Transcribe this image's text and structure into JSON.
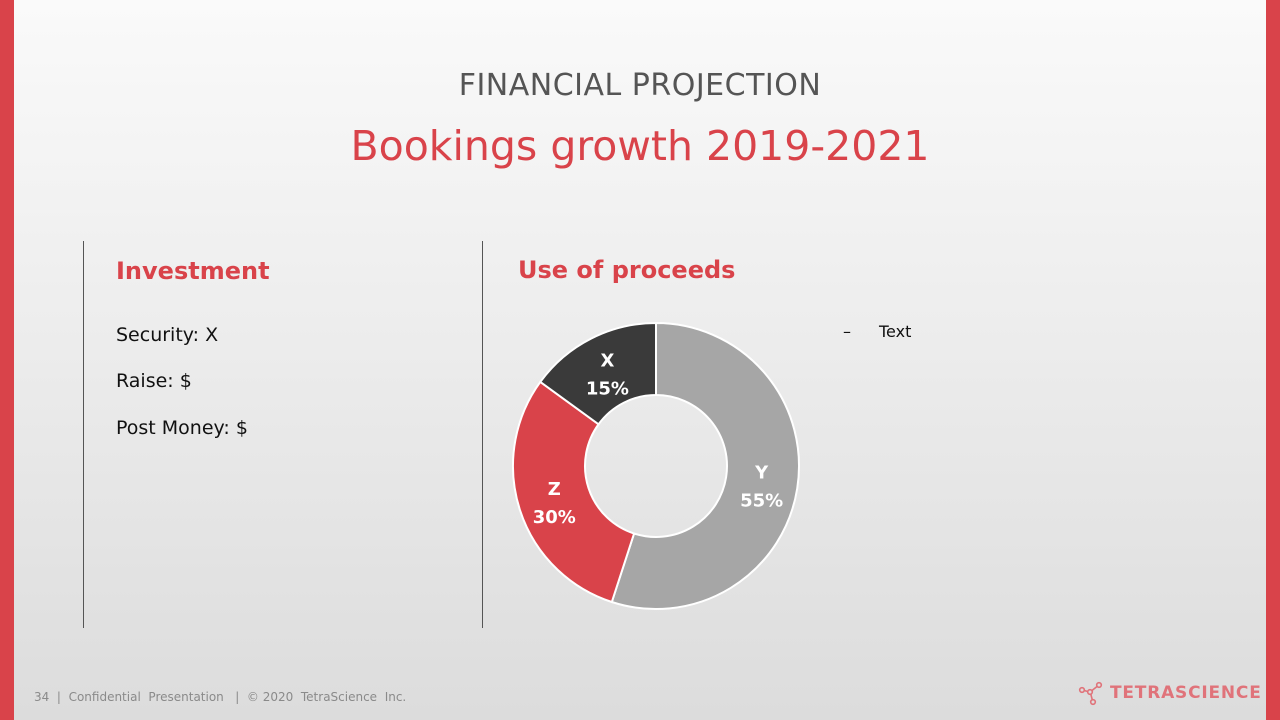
{
  "slide": {
    "kicker": "FINANCIAL PROJECTION",
    "title": "Bookings growth 2019-2021"
  },
  "investment": {
    "heading": "Investment",
    "lines": [
      "Security: X",
      "Raise: $",
      "Post Money: $"
    ]
  },
  "proceeds": {
    "heading": "Use of proceeds",
    "legend_dash": "–",
    "legend_text": "Text"
  },
  "chart_data": {
    "type": "pie",
    "subtype": "donut",
    "title": "Use of proceeds",
    "labels": [
      "Y",
      "Z",
      "X"
    ],
    "values": [
      55,
      30,
      15
    ],
    "value_labels": [
      "55%",
      "30%",
      "15%"
    ],
    "colors": [
      "#a6a6a6",
      "#d9434a",
      "#3a3a3a"
    ],
    "start": "top",
    "direction": "clockwise"
  },
  "footer": {
    "text": "34  |  Confidential  Presentation   |  © 2020  TetraScience  Inc.",
    "brand": "TETRASCIENCE"
  },
  "colors": {
    "accent": "#d9434a",
    "dark": "#3a3a3a",
    "gray": "#a6a6a6"
  },
  "icons": {
    "logo": "molecule-logo-icon"
  }
}
